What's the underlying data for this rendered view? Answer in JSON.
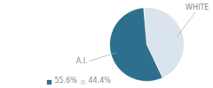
{
  "chart_data": {
    "type": "pie",
    "categories": [
      "A.I.",
      "WHITE"
    ],
    "values": [
      55.6,
      44.4
    ],
    "value_labels": [
      "55.6%",
      "44.4%"
    ],
    "colors": [
      "#2e6f8e",
      "#d9e4ec"
    ],
    "legend": "lower left"
  }
}
